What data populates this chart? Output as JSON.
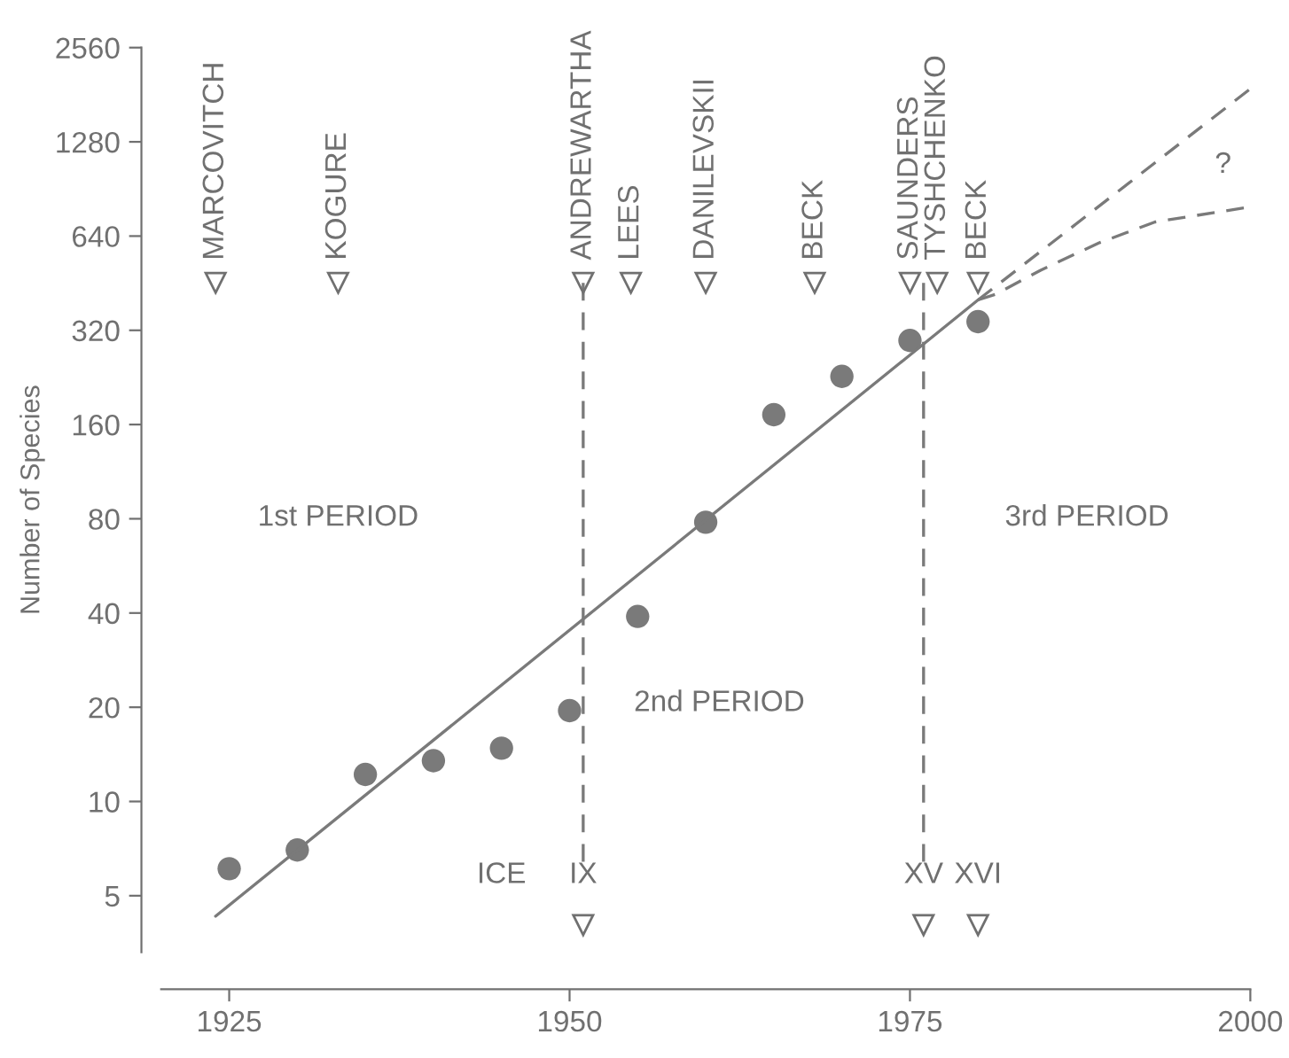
{
  "chart_data": {
    "type": "scatter",
    "ylabel": "Number of Species",
    "log": "y",
    "marker": "circle",
    "grid": false,
    "xlim": [
      1920,
      2000
    ],
    "xticks": [
      1925,
      1950,
      1975,
      2000
    ],
    "ylim": [
      3.3,
      2560
    ],
    "yticks": [
      5,
      10,
      20,
      40,
      80,
      160,
      320,
      640,
      1280,
      2560
    ],
    "series": [
      {
        "color": "#7a7a7a",
        "x": [
          1925,
          1930,
          1935,
          1940,
          1945,
          1950,
          1955,
          1960,
          1965,
          1970,
          1975,
          1980
        ],
        "values": [
          6.1,
          7.0,
          12.2,
          13.5,
          14.8,
          19.5,
          39,
          78,
          172,
          228,
          297,
          341
        ]
      },
      {
        "type": "line",
        "color": "#7a7a7a",
        "line_style": "solid",
        "marker": "none",
        "x": [
          1924,
          1980
        ],
        "values": [
          4.3,
          400
        ]
      },
      {
        "type": "line",
        "color": "#7a7a7a",
        "line_style": "dashed",
        "marker": "none",
        "x": [
          1980,
          2000
        ],
        "values": [
          400,
          1890
        ]
      },
      {
        "type": "line",
        "color": "#7a7a7a",
        "line_style": "dashed",
        "marker": "none",
        "x": [
          1980,
          1981.3,
          1984.6,
          1988.9,
          1993,
          2000
        ],
        "values": [
          400,
          417,
          498,
          609,
          710,
          793
        ]
      }
    ],
    "ref_lines": [
      {
        "axis": "x",
        "value": 1951,
        "line_style": "dashed",
        "color": "#7a7a7a"
      },
      {
        "axis": "x",
        "value": 1976,
        "line_style": "dashed",
        "color": "#7a7a7a"
      }
    ],
    "annotations": [
      "MARCOVITCH",
      "KOGURE",
      "ANDREWARTHA",
      "LEES",
      "DANILEVSKII",
      "BECK",
      "SAUNDERS",
      "TYSHCHENKO",
      "BECK",
      "1st PERIOD",
      "2nd PERIOD",
      "3rd PERIOD",
      "?",
      "ICE",
      "IX",
      "XV",
      "XVI"
    ]
  }
}
